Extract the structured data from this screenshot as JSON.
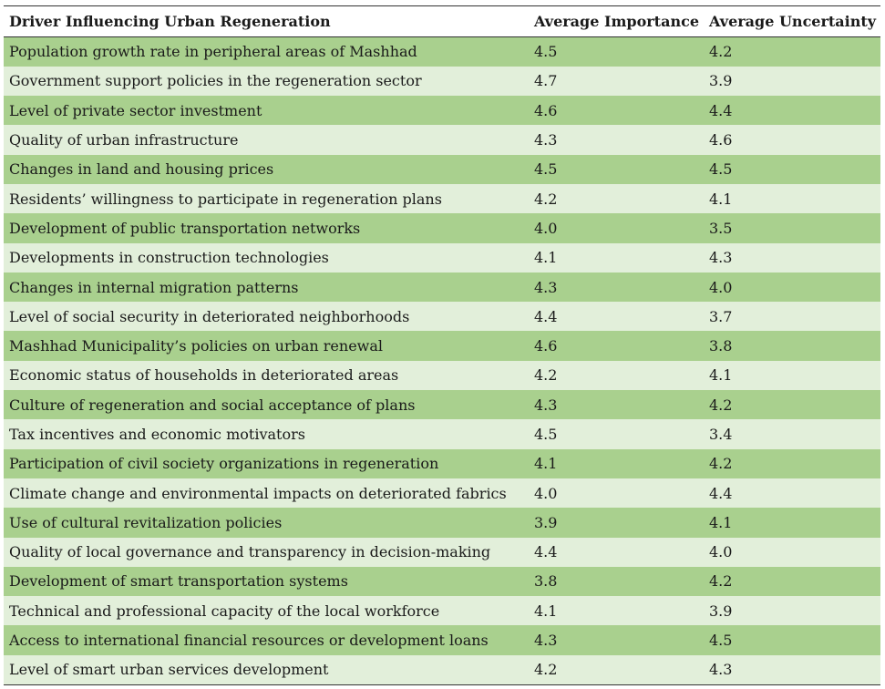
{
  "table": {
    "headers": [
      "Driver Influencing Urban Regeneration",
      "Average Importance",
      "Average Uncertainty"
    ],
    "rows": [
      [
        "Population growth rate in peripheral areas of Mashhad",
        "4.5",
        "4.2"
      ],
      [
        "Government support policies in the regeneration sector",
        "4.7",
        "3.9"
      ],
      [
        "Level of private sector investment",
        "4.6",
        "4.4"
      ],
      [
        "Quality of urban infrastructure",
        "4.3",
        "4.6"
      ],
      [
        "Changes in land and housing prices",
        "4.5",
        "4.5"
      ],
      [
        "Residents’ willingness to participate in regeneration plans",
        "4.2",
        "4.1"
      ],
      [
        "Development of public transportation networks",
        "4.0",
        "3.5"
      ],
      [
        "Developments in construction technologies",
        "4.1",
        "4.3"
      ],
      [
        "Changes in internal migration patterns",
        "4.3",
        "4.0"
      ],
      [
        "Level of social security in deteriorated neighborhoods",
        "4.4",
        "3.7"
      ],
      [
        "Mashhad Municipality’s policies on urban renewal",
        "4.6",
        "3.8"
      ],
      [
        "Economic status of households in deteriorated areas",
        "4.2",
        "4.1"
      ],
      [
        "Culture of regeneration and social acceptance of plans",
        "4.3",
        "4.2"
      ],
      [
        "Tax incentives and economic motivators",
        "4.5",
        "3.4"
      ],
      [
        "Participation of civil society organizations in regeneration",
        "4.1",
        "4.2"
      ],
      [
        "Climate change and environmental impacts on deteriorated fabrics",
        "4.0",
        "4.4"
      ],
      [
        "Use of cultural revitalization policies",
        "3.9",
        "4.1"
      ],
      [
        "Quality of local governance and transparency in decision-making",
        "4.4",
        "4.0"
      ],
      [
        "Development of smart transportation systems",
        "3.8",
        "4.2"
      ],
      [
        "Technical and professional capacity of the local workforce",
        "4.1",
        "3.9"
      ],
      [
        "Access to international financial resources or development loans",
        "4.3",
        "4.5"
      ],
      [
        "Level of smart urban services development",
        "4.2",
        "4.3"
      ]
    ],
    "row_colors": {
      "odd": "#a9d08e",
      "even": "#e2efda"
    }
  }
}
